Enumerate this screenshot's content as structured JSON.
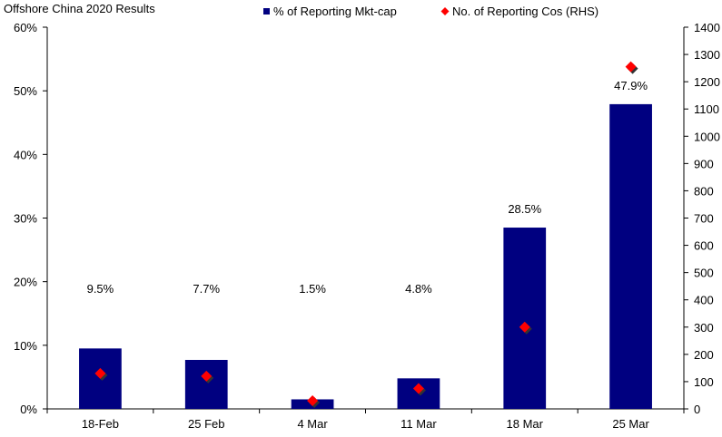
{
  "chart_data": {
    "type": "bar",
    "title": "Offshore China 2020 Results",
    "categories": [
      "18-Feb",
      "25 Feb",
      "4 Mar",
      "11 Mar",
      "18 Mar",
      "25 Mar"
    ],
    "series": [
      {
        "name": "% of Reporting Mkt-cap",
        "type": "bar",
        "axis": "left",
        "color": "#000080",
        "values": [
          9.5,
          7.7,
          1.5,
          4.8,
          28.5,
          47.9
        ],
        "labels": [
          "9.5%",
          "7.7%",
          "1.5%",
          "4.8%",
          "28.5%",
          "47.9%"
        ]
      },
      {
        "name": "No. of Reporting Cos (RHS)",
        "type": "scatter",
        "marker": "diamond",
        "axis": "right",
        "color": "#ff0000",
        "values": [
          130,
          120,
          30,
          75,
          300,
          1255
        ]
      }
    ],
    "y_left": {
      "min": 0,
      "max": 60,
      "step": 10,
      "tick_labels": [
        "0%",
        "10%",
        "20%",
        "30%",
        "40%",
        "50%",
        "60%"
      ]
    },
    "y_right": {
      "min": 0,
      "max": 1400,
      "step": 100,
      "tick_labels": [
        "0",
        "100",
        "200",
        "300",
        "400",
        "500",
        "600",
        "700",
        "800",
        "900",
        "1000",
        "1100",
        "1200",
        "1300",
        "1400"
      ]
    },
    "legend": {
      "position": "top-center",
      "items": [
        "% of Reporting Mkt-cap",
        "No. of Reporting Cos (RHS)"
      ]
    },
    "grid": false
  }
}
